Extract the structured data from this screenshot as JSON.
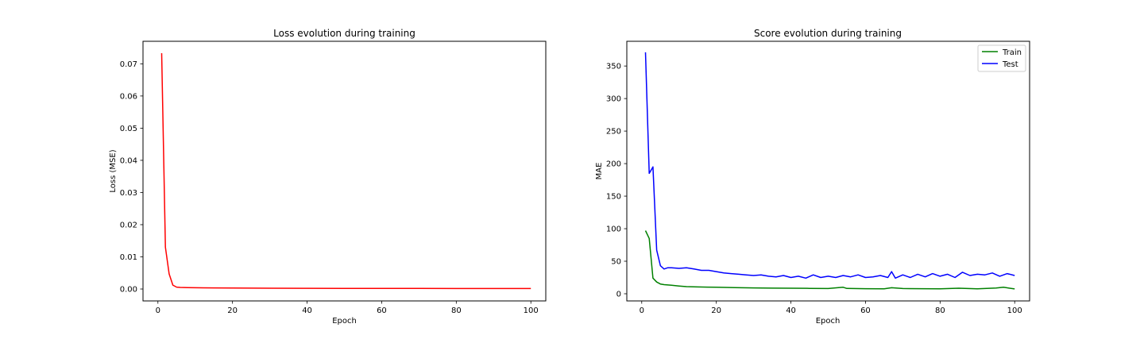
{
  "chart_data": [
    {
      "type": "line",
      "title": "Loss evolution during training",
      "xlabel": "Epoch",
      "ylabel": "Loss (MSE)",
      "xlim": [
        -4,
        104
      ],
      "ylim": [
        -0.0037,
        0.077
      ],
      "xticks": [
        0,
        20,
        40,
        60,
        80,
        100
      ],
      "xtick_labels": [
        "0",
        "20",
        "40",
        "60",
        "80",
        "100"
      ],
      "yticks": [
        0.0,
        0.01,
        0.02,
        0.03,
        0.04,
        0.05,
        0.06,
        0.07
      ],
      "ytick_labels": [
        "0.00",
        "0.01",
        "0.02",
        "0.03",
        "0.04",
        "0.05",
        "0.06",
        "0.07"
      ],
      "grid": false,
      "series": [
        {
          "color": "#ff0000",
          "x": [
            1,
            2,
            3,
            4,
            5,
            6,
            8,
            10,
            15,
            20,
            30,
            40,
            50,
            60,
            70,
            80,
            90,
            100
          ],
          "y": [
            0.0733,
            0.013,
            0.0047,
            0.0012,
            0.0006,
            0.0005,
            0.00045,
            0.0004,
            0.00035,
            0.0003,
            0.00025,
            0.00022,
            0.0002,
            0.00018,
            0.00017,
            0.00016,
            0.00015,
            0.00014
          ]
        }
      ]
    },
    {
      "type": "line",
      "title": "Score evolution during training",
      "xlabel": "Epoch",
      "ylabel": "MAE",
      "xlim": [
        -4,
        104
      ],
      "ylim": [
        -11,
        388
      ],
      "xticks": [
        0,
        20,
        40,
        60,
        80,
        100
      ],
      "xtick_labels": [
        "0",
        "20",
        "40",
        "60",
        "80",
        "100"
      ],
      "yticks": [
        0,
        50,
        100,
        150,
        200,
        250,
        300,
        350
      ],
      "ytick_labels": [
        "0",
        "50",
        "100",
        "150",
        "200",
        "250",
        "300",
        "350"
      ],
      "grid": false,
      "legend": "upper right",
      "series": [
        {
          "name": "Train",
          "color": "#008000",
          "x": [
            1,
            2,
            3,
            4,
            5,
            6,
            8,
            10,
            12,
            15,
            20,
            25,
            30,
            35,
            40,
            45,
            50,
            54,
            55,
            60,
            65,
            67,
            70,
            75,
            80,
            85,
            90,
            95,
            97,
            100
          ],
          "y": [
            97,
            85,
            24,
            18,
            15,
            14,
            13,
            12,
            11,
            10.5,
            10,
            9.5,
            9,
            8.7,
            8.5,
            8.3,
            8.0,
            10,
            8.2,
            7.8,
            7.7,
            9.2,
            8.0,
            7.8,
            7.6,
            8.5,
            7.7,
            8.8,
            10,
            7.4
          ]
        },
        {
          "name": "Test",
          "color": "#0000ff",
          "x": [
            1,
            2,
            3,
            4,
            5,
            6,
            7,
            8,
            10,
            12,
            14,
            16,
            18,
            20,
            22,
            24,
            26,
            28,
            30,
            32,
            34,
            36,
            38,
            40,
            42,
            44,
            46,
            48,
            50,
            52,
            54,
            56,
            58,
            60,
            62,
            64,
            66,
            67,
            68,
            70,
            72,
            74,
            76,
            78,
            80,
            82,
            84,
            86,
            88,
            90,
            92,
            94,
            96,
            98,
            100
          ],
          "y": [
            371,
            185,
            195,
            67,
            43,
            38,
            40,
            40,
            39,
            40,
            38,
            36,
            36,
            34,
            32,
            31,
            30,
            29,
            28,
            29,
            27,
            26,
            28,
            25,
            27,
            24,
            29,
            25,
            27,
            25,
            28,
            26,
            29,
            25,
            26,
            28,
            25,
            34,
            24,
            29,
            25,
            30,
            26,
            31,
            27,
            30,
            25,
            33,
            28,
            30,
            29,
            32,
            27,
            31,
            28
          ]
        }
      ]
    }
  ]
}
